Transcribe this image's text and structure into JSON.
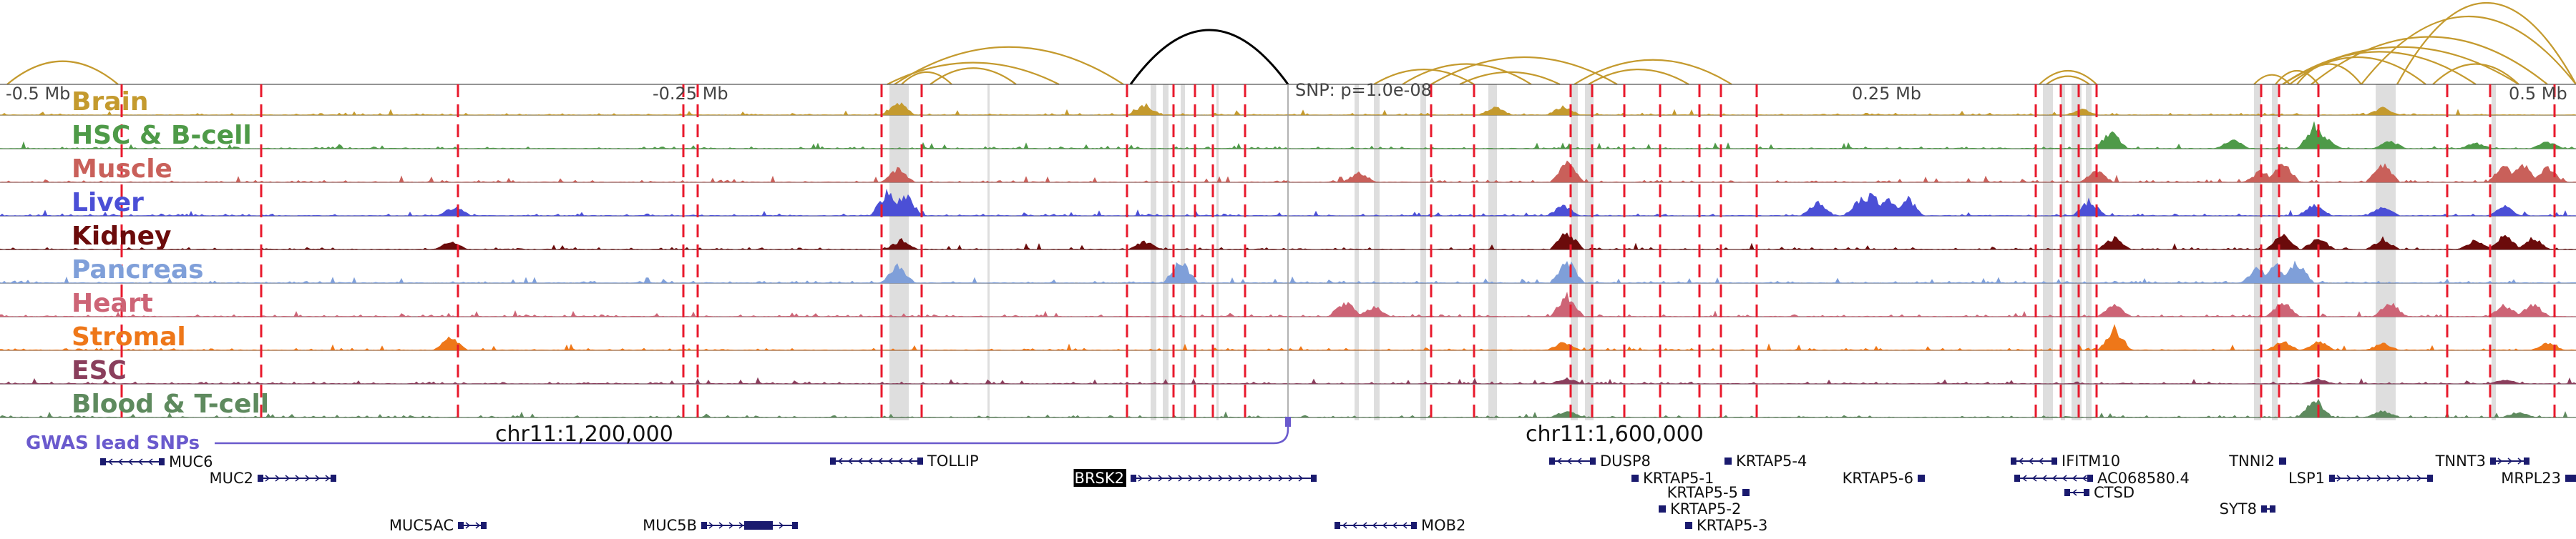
{
  "figure": {
    "axis_labels": [
      "-0.5 Mb",
      "-0.25 Mb",
      "0.25 Mb",
      "0.5 Mb"
    ],
    "snp_label": "SNP: p=1.0e-08",
    "gwas_label": "GWAS lead SNPs",
    "coord_labels": [
      "chr11:1,200,000",
      "chr11:1,600,000"
    ]
  },
  "tracks": [
    {
      "name": "Brain",
      "color": "#c49a2e"
    },
    {
      "name": "HSC & B-cell",
      "color": "#4e9a48"
    },
    {
      "name": "Muscle",
      "color": "#c9605a"
    },
    {
      "name": "Liver",
      "color": "#4b4fd6"
    },
    {
      "name": "Kidney",
      "color": "#6b0b0b"
    },
    {
      "name": "Pancreas",
      "color": "#7f9fd9"
    },
    {
      "name": "Heart",
      "color": "#cd6476"
    },
    {
      "name": "Stromal",
      "color": "#ee7719"
    },
    {
      "name": "ESC",
      "color": "#8a3e5c"
    },
    {
      "name": "Blood & T-cell",
      "color": "#5e8a5e"
    }
  ],
  "genes": [
    {
      "name": "MUC6",
      "strand": "-"
    },
    {
      "name": "MUC2",
      "strand": "+"
    },
    {
      "name": "MUC5AC",
      "strand": "+"
    },
    {
      "name": "MUC5B",
      "strand": "+"
    },
    {
      "name": "TOLLIP",
      "strand": "-"
    },
    {
      "name": "BRSK2",
      "strand": "+",
      "highlight": true
    },
    {
      "name": "MOB2",
      "strand": "-"
    },
    {
      "name": "DUSP8",
      "strand": "-"
    },
    {
      "name": "KRTAP5-1",
      "strand": "-"
    },
    {
      "name": "KRTAP5-5",
      "strand": "+"
    },
    {
      "name": "KRTAP5-2",
      "strand": "-"
    },
    {
      "name": "KRTAP5-3",
      "strand": "-"
    },
    {
      "name": "KRTAP5-4",
      "strand": "-"
    },
    {
      "name": "KRTAP5-6",
      "strand": "+"
    },
    {
      "name": "IFITM10",
      "strand": "-"
    },
    {
      "name": "AC068580.4",
      "strand": "-"
    },
    {
      "name": "CTSD",
      "strand": "-"
    },
    {
      "name": "TNNI2",
      "strand": "+"
    },
    {
      "name": "LSP1",
      "strand": "+"
    },
    {
      "name": "SYT8",
      "strand": "+"
    },
    {
      "name": "TNNT3",
      "strand": "+"
    },
    {
      "name": "MRPL23",
      "strand": "-"
    }
  ],
  "colors": {
    "loop": "#c49a2e",
    "snp_loop": "#000000",
    "red_line": "#e8192c",
    "gwas": "#6a5acd",
    "gene": "#1a1a6e"
  }
}
